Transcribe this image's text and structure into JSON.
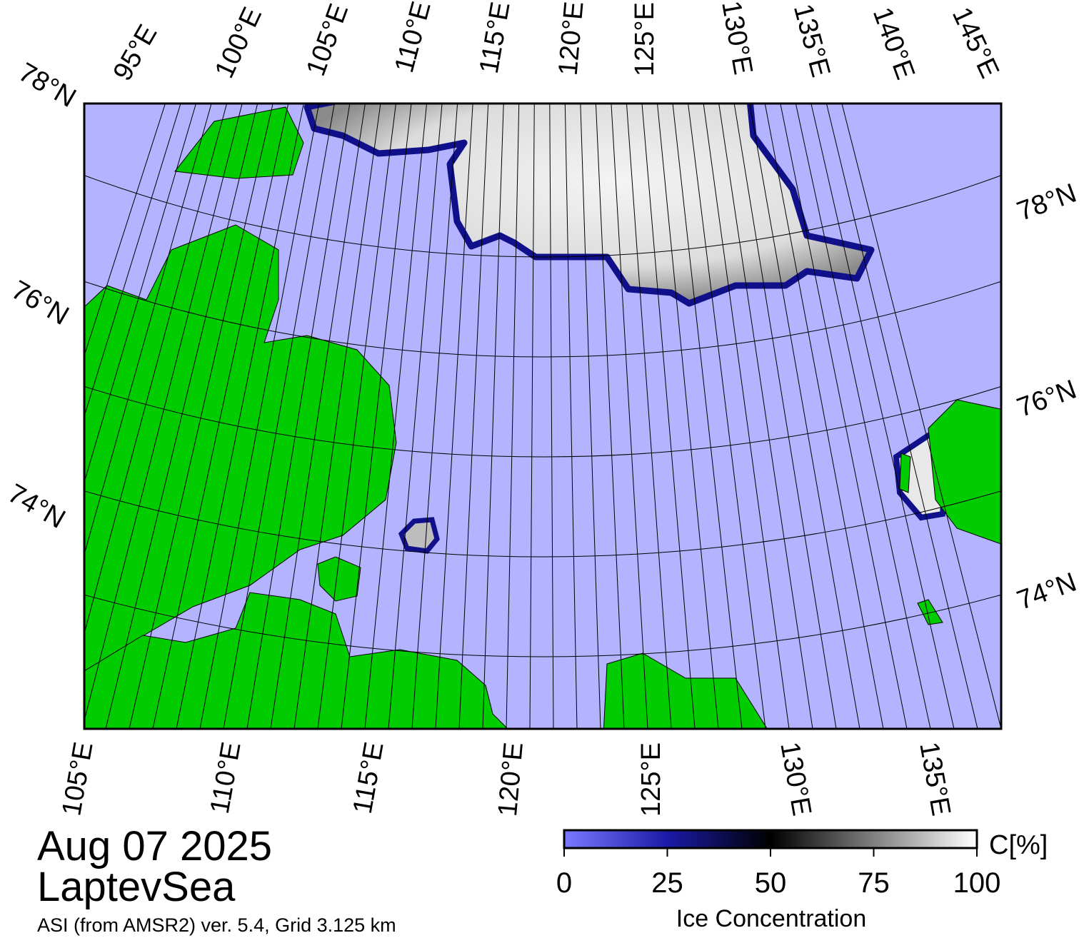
{
  "map": {
    "date": "Aug 07 2025",
    "region": "LaptevSea",
    "source": "ASI (from AMSR2) ver. 5.4,  Grid 3.125 km",
    "top_labels": [
      "95°E",
      "100°E",
      "105°E",
      "110°E",
      "115°E",
      "120°E",
      "125°E",
      "130°E",
      "135°E",
      "140°E",
      "145°E"
    ],
    "bottom_labels": [
      "105°E",
      "110°E",
      "115°E",
      "120°E",
      "125°E",
      "130°E",
      "135°E"
    ],
    "left_labels": [
      "78°N",
      "76°N",
      "74°N"
    ],
    "right_labels": [
      "78°N",
      "76°N",
      "74°N"
    ]
  },
  "colorbar": {
    "label": "Ice Concentration",
    "unit": "C[%]",
    "range": [
      0,
      100
    ],
    "ticks": [
      0,
      25,
      50,
      75,
      100
    ]
  }
}
